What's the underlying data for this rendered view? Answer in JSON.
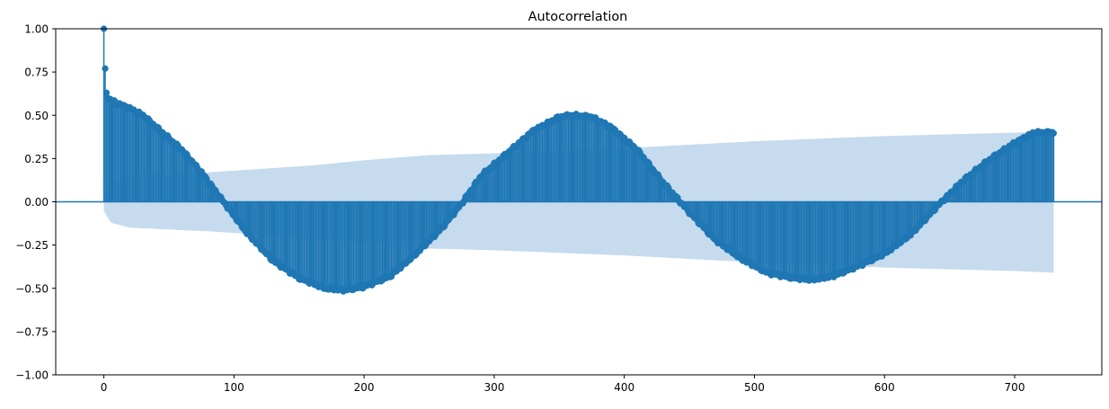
{
  "chart_data": {
    "type": "stem",
    "title": "Autocorrelation",
    "xlabel": "",
    "ylabel": "",
    "xlim": [
      -37,
      767
    ],
    "ylim": [
      -1.0,
      1.0
    ],
    "x_ticks": [
      0,
      100,
      200,
      300,
      400,
      500,
      600,
      700
    ],
    "x_tick_labels": [
      "0",
      "100",
      "200",
      "300",
      "400",
      "500",
      "600",
      "700"
    ],
    "y_ticks": [
      1.0,
      0.75,
      0.5,
      0.25,
      0.0,
      -0.25,
      -0.5,
      -0.75,
      -1.0
    ],
    "y_tick_labels": [
      "1.00",
      "0.75",
      "0.50",
      "0.25",
      "0.00",
      "−0.25",
      "−0.50",
      "−0.75",
      "−1.00"
    ],
    "max_lag": 730,
    "acf_keypoints": {
      "lags": [
        0,
        1,
        2,
        3,
        5,
        10,
        20,
        30,
        45,
        60,
        75,
        90,
        110,
        130,
        150,
        170,
        185,
        200,
        220,
        240,
        260,
        275,
        290,
        310,
        330,
        350,
        360,
        375,
        390,
        410,
        430,
        450,
        470,
        490,
        510,
        530,
        545,
        560,
        580,
        600,
        620,
        640,
        660,
        680,
        700,
        715,
        730
      ],
      "values": [
        1.0,
        0.77,
        0.63,
        0.6,
        0.59,
        0.57,
        0.54,
        0.5,
        0.4,
        0.3,
        0.17,
        0.02,
        -0.18,
        -0.34,
        -0.44,
        -0.5,
        -0.51,
        -0.49,
        -0.43,
        -0.3,
        -0.15,
        -0.01,
        0.15,
        0.28,
        0.41,
        0.49,
        0.5,
        0.49,
        0.43,
        0.3,
        0.11,
        -0.06,
        -0.22,
        -0.33,
        -0.41,
        -0.44,
        -0.45,
        -0.43,
        -0.37,
        -0.3,
        -0.19,
        -0.03,
        0.12,
        0.24,
        0.34,
        0.4,
        0.4
      ]
    },
    "confidence_band": {
      "lags": [
        0,
        5,
        20,
        50,
        80,
        120,
        160,
        200,
        250,
        300,
        400,
        500,
        600,
        700,
        730
      ],
      "half_width": [
        0.05,
        0.12,
        0.15,
        0.16,
        0.17,
        0.19,
        0.21,
        0.24,
        0.27,
        0.28,
        0.31,
        0.35,
        0.38,
        0.4,
        0.41
      ]
    },
    "grid": false,
    "colors": {
      "stem": "#1f77b4",
      "band": "#c6dbed",
      "zero_line": "#1f77b4",
      "axes": "#000000"
    }
  }
}
